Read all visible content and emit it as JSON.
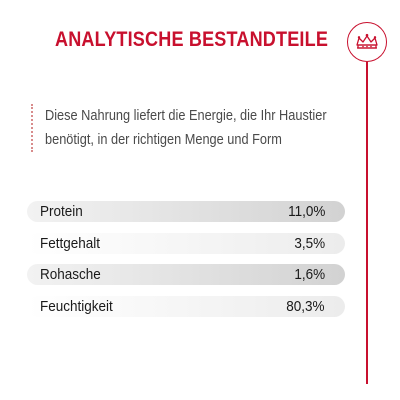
{
  "header": {
    "title": "ANALYTISCHE BESTANDTEILE",
    "logo_icon": "crown-icon"
  },
  "intro": {
    "line1": "Diese Nahrung liefert die Energie, die Ihr Haustier",
    "line2": "benötigt, in der richtigen Menge und Form"
  },
  "nutrients": [
    {
      "label": "Protein",
      "value": "11,0%"
    },
    {
      "label": "Fettgehalt",
      "value": "3,5%"
    },
    {
      "label": "Rohasche",
      "value": "1,6%"
    },
    {
      "label": "Feuchtigkeit",
      "value": "80,3%"
    }
  ],
  "colors": {
    "accent": "#c8102e",
    "text": "#1a1a1a",
    "row_dark": "#d2d2d2",
    "row_light": "#ececec"
  }
}
